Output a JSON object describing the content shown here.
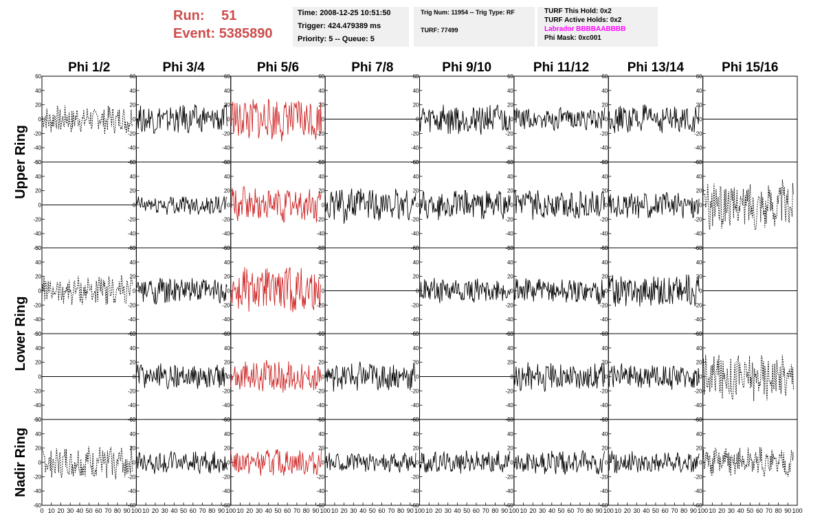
{
  "header": {
    "run_label": "Run:",
    "run_value": "51",
    "event_label": "Event:",
    "event_value": "5385890",
    "box1": [
      "Time: 2008-12-25 10:51:50",
      "Trigger: 424.479389 ms",
      "Priority: 5 -- Queue: 5"
    ],
    "box2_line1": "Trig Num: 11954 -- Trig Type: RF",
    "box2_line2": "TURF: 77499",
    "box3_line1": "TURF This Hold: 0x2",
    "box3_line2": "TURF Active Holds: 0x2",
    "box3_labrador": "Labrador BBBBAABBBB",
    "box3_line4": "Phi Mask: 0xc001"
  },
  "colors": {
    "run_text": "#cc4c4c",
    "labrador": "#ff00ff",
    "highlight_trace": "#cc2222",
    "trace": "#000000",
    "info_bg": "#f0f0f0"
  },
  "chart_data": {
    "type": "line",
    "columns": [
      "Phi 1/2",
      "Phi 3/4",
      "Phi 5/6",
      "Phi 7/8",
      "Phi 9/10",
      "Phi 11/12",
      "Phi 13/14",
      "Phi 15/16"
    ],
    "rows": [
      "Upper Ring",
      "Lower Ring",
      "Nadir Ring"
    ],
    "xlim": [
      0,
      100
    ],
    "ylim": [
      -60,
      60
    ],
    "x_ticks": [
      0,
      10,
      20,
      30,
      40,
      50,
      60,
      70,
      80,
      90,
      100
    ],
    "y_ticks": [
      60,
      40,
      20,
      0,
      -20,
      -40,
      -60
    ],
    "panels_rows": [
      {
        "row": "Upper Ring",
        "index": 1,
        "styles": [
          "dashed",
          "solid",
          "red",
          "flat",
          "solid",
          "solid",
          "solid",
          "flat"
        ],
        "amplitude": [
          18,
          18,
          28,
          0,
          20,
          14,
          18,
          0
        ]
      },
      {
        "row": "Upper Ring",
        "index": 2,
        "styles": [
          "flat",
          "solid",
          "red",
          "solid",
          "solid",
          "solid",
          "solid",
          "dashed"
        ],
        "amplitude": [
          0,
          12,
          22,
          22,
          18,
          18,
          16,
          30
        ]
      },
      {
        "row": "Lower Ring",
        "index": 1,
        "styles": [
          "dashed",
          "solid",
          "red",
          "flat",
          "solid",
          "solid",
          "solid",
          "flat"
        ],
        "amplitude": [
          18,
          16,
          30,
          0,
          16,
          16,
          20,
          0
        ]
      },
      {
        "row": "Lower Ring",
        "index": 2,
        "styles": [
          "flat",
          "solid",
          "red",
          "solid",
          "flat",
          "solid",
          "solid",
          "dashed"
        ],
        "amplitude": [
          0,
          16,
          20,
          18,
          0,
          18,
          16,
          30
        ]
      },
      {
        "row": "Nadir Ring",
        "index": 1,
        "styles": [
          "dashed",
          "solid",
          "red",
          "solid",
          "solid",
          "solid",
          "solid",
          "dashed"
        ],
        "amplitude": [
          20,
          14,
          16,
          12,
          14,
          16,
          14,
          18
        ]
      }
    ]
  }
}
